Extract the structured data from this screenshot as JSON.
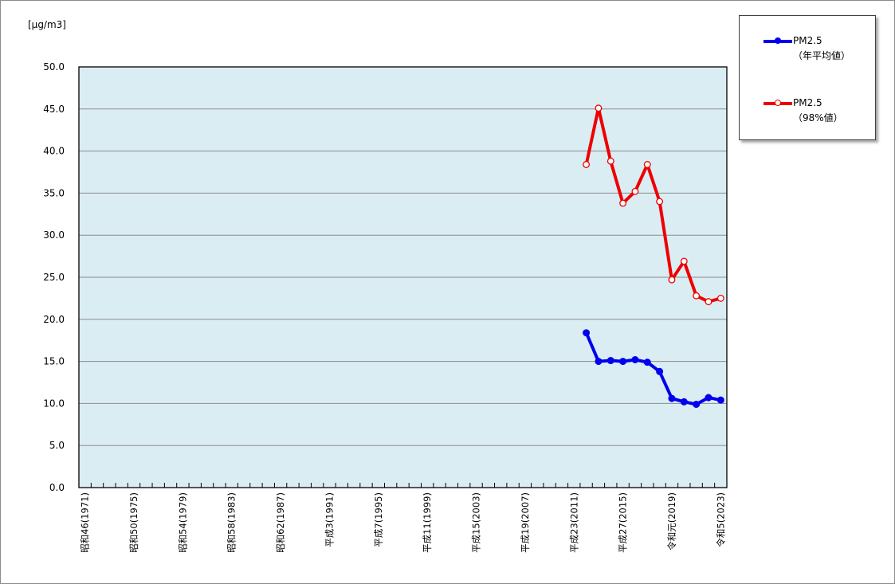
{
  "chart_data": {
    "type": "line",
    "unit_label": "[μg/m3]",
    "ylim": [
      0,
      50
    ],
    "y_ticks": [
      "0.0",
      "5.0",
      "10.0",
      "15.0",
      "20.0",
      "25.0",
      "30.0",
      "35.0",
      "40.0",
      "45.0",
      "50.0"
    ],
    "grid": true,
    "legend_position": "top-right, outside plot",
    "x_years": [
      1971,
      1972,
      1973,
      1974,
      1975,
      1976,
      1977,
      1978,
      1979,
      1980,
      1981,
      1982,
      1983,
      1984,
      1985,
      1986,
      1987,
      1988,
      1989,
      1990,
      1991,
      1992,
      1993,
      1994,
      1995,
      1996,
      1997,
      1998,
      1999,
      2000,
      2001,
      2002,
      2003,
      2004,
      2005,
      2006,
      2007,
      2008,
      2009,
      2010,
      2011,
      2012,
      2013,
      2014,
      2015,
      2016,
      2017,
      2018,
      2019,
      2020,
      2021,
      2022,
      2023
    ],
    "x_tick_labels": [
      {
        "year": 1971,
        "label": "昭和46(1971)"
      },
      {
        "year": 1975,
        "label": "昭和50(1975)"
      },
      {
        "year": 1979,
        "label": "昭和54(1979)"
      },
      {
        "year": 1983,
        "label": "昭和58(1983)"
      },
      {
        "year": 1987,
        "label": "昭和62(1987)"
      },
      {
        "year": 1991,
        "label": "平成3(1991)"
      },
      {
        "year": 1995,
        "label": "平成7(1995)"
      },
      {
        "year": 1999,
        "label": "平成11(1999)"
      },
      {
        "year": 2003,
        "label": "平成15(2003)"
      },
      {
        "year": 2007,
        "label": "平成19(2007)"
      },
      {
        "year": 2011,
        "label": "平成23(2011)"
      },
      {
        "year": 2015,
        "label": "平成27(2015)"
      },
      {
        "year": 2019,
        "label": "令和元(2019)"
      },
      {
        "year": 2023,
        "label": "令和5(2023)"
      }
    ],
    "series": [
      {
        "name": "PM2.5",
        "sub": "（年平均値）",
        "color": "#0000ee",
        "marker": "filled",
        "x": [
          2012,
          2013,
          2014,
          2015,
          2016,
          2017,
          2018,
          2019,
          2020,
          2021,
          2022,
          2023
        ],
        "values": [
          18.4,
          15.0,
          15.1,
          15.0,
          15.2,
          14.9,
          13.8,
          10.6,
          10.2,
          9.9,
          10.7,
          10.4
        ]
      },
      {
        "name": "PM2.5",
        "sub": "（98%値）",
        "color": "#ee0000",
        "marker": "hollow",
        "x": [
          2012,
          2013,
          2014,
          2015,
          2016,
          2017,
          2018,
          2019,
          2020,
          2021,
          2022,
          2023
        ],
        "values": [
          38.4,
          45.1,
          38.8,
          33.8,
          35.2,
          38.4,
          34.0,
          24.7,
          26.9,
          22.8,
          22.1,
          22.5
        ]
      }
    ]
  }
}
